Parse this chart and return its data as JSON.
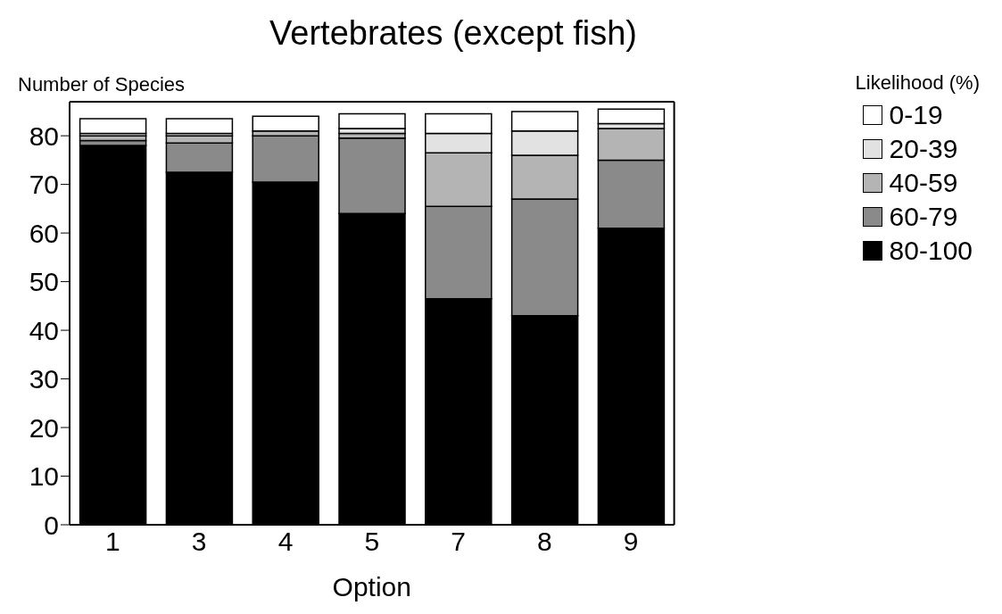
{
  "chart_data": {
    "type": "bar",
    "title": "Vertebrates (except fish)",
    "xlabel": "Option",
    "ylabel": "Number of Species",
    "legend_title": "Likelihood (%)",
    "categories": [
      "1",
      "3",
      "4",
      "5",
      "7",
      "8",
      "9"
    ],
    "stacked": true,
    "series": [
      {
        "name": "80-100",
        "color": "#000000",
        "values": [
          78,
          72.5,
          70.5,
          64,
          46.5,
          43,
          61
        ]
      },
      {
        "name": "60-79",
        "color": "#8a8a8a",
        "values": [
          1,
          6,
          9.5,
          15.5,
          19,
          24,
          14
        ]
      },
      {
        "name": "40-59",
        "color": "#b4b4b4",
        "values": [
          1,
          1.5,
          1,
          1,
          11,
          9,
          6.5
        ]
      },
      {
        "name": "20-39",
        "color": "#e2e2e2",
        "values": [
          0.5,
          0.5,
          0,
          1,
          4,
          5,
          1
        ]
      },
      {
        "name": "0-19",
        "color": "#ffffff",
        "values": [
          3,
          3,
          3,
          3,
          4,
          4,
          3
        ]
      }
    ],
    "ylim": [
      0,
      87
    ],
    "yticks": [
      0,
      10,
      20,
      30,
      40,
      50,
      60,
      70,
      80
    ],
    "grid": false,
    "legend": "top right"
  }
}
